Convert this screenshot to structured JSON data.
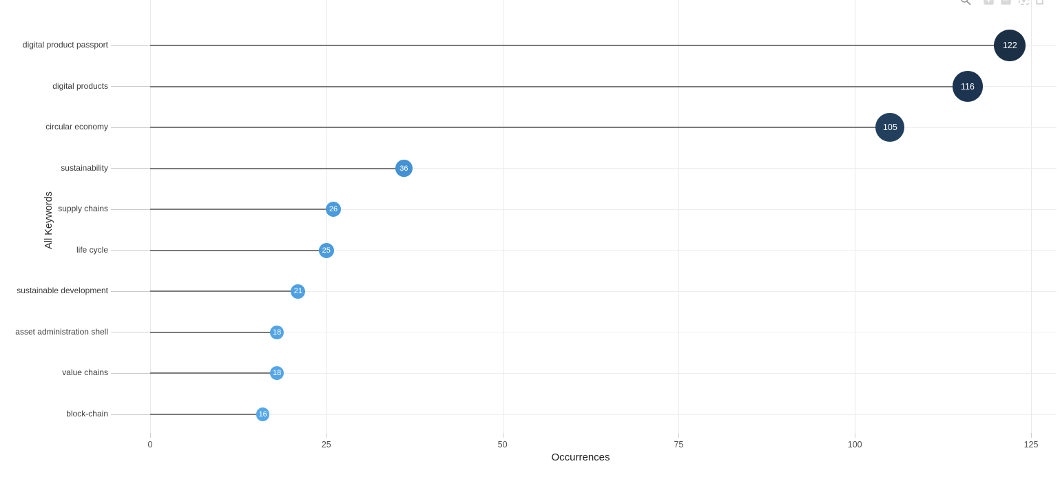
{
  "toolbar": {
    "icons": [
      {
        "name": "box-zoom"
      },
      {
        "name": "zoom-in"
      },
      {
        "name": "zoom-out"
      },
      {
        "name": "autoscale"
      },
      {
        "name": "reset-view"
      }
    ]
  },
  "chart_data": {
    "type": "bar",
    "variant": "lollipop",
    "orientation": "horizontal",
    "title": "",
    "xlabel": "Occurrences",
    "ylabel": "All Keywords",
    "categories": [
      "digital product passport",
      "digital products",
      "circular economy",
      "sustainability",
      "supply chains",
      "life cycle",
      "sustainable development",
      "asset administration shell",
      "value chains",
      "block-chain"
    ],
    "values": [
      122,
      116,
      105,
      36,
      26,
      25,
      21,
      18,
      18,
      16
    ],
    "point_colors": [
      "#1b2f45",
      "#1d3450",
      "#22405e",
      "#4492d4",
      "#4a9bdd",
      "#4b9cde",
      "#50a1e3",
      "#52a4e5",
      "#53a5e6",
      "#55a7e8"
    ],
    "xlim": [
      0,
      125
    ],
    "xticks": [
      0,
      25,
      50,
      75,
      100,
      125
    ],
    "grid": true,
    "legend": "none"
  },
  "style": {
    "stem_color": "#7a7a7a",
    "grid_color": "#ededed",
    "leader_color": "#cbcbcb",
    "marker_text_color": "#ffffff",
    "background": "#ffffff"
  }
}
